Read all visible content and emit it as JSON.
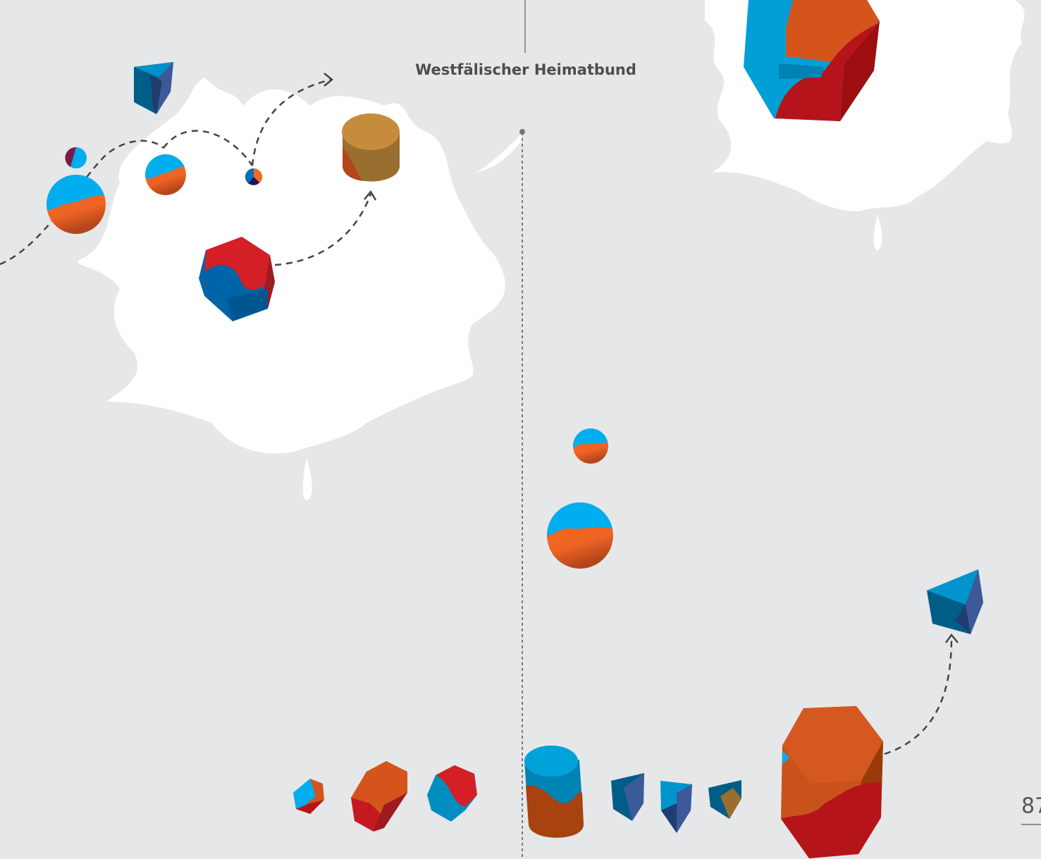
{
  "header": {
    "title": "Westfälischer Heimatbund"
  },
  "page_number": "87"
}
